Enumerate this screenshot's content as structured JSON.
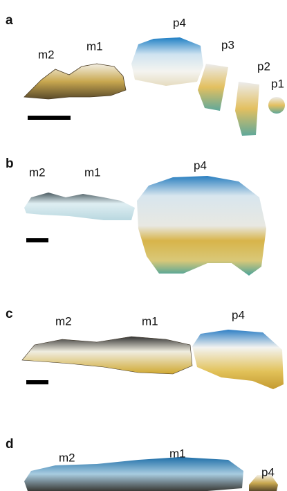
{
  "panels": [
    {
      "label": "a",
      "teeth": [
        "m2",
        "m1",
        "p4",
        "p3",
        "p2",
        "p1"
      ]
    },
    {
      "label": "b",
      "teeth": [
        "m2",
        "m1",
        "p4"
      ]
    },
    {
      "label": "c",
      "teeth": [
        "m2",
        "m1",
        "p4"
      ]
    },
    {
      "label": "d",
      "teeth": [
        "m2",
        "m1",
        "p4"
      ]
    }
  ]
}
